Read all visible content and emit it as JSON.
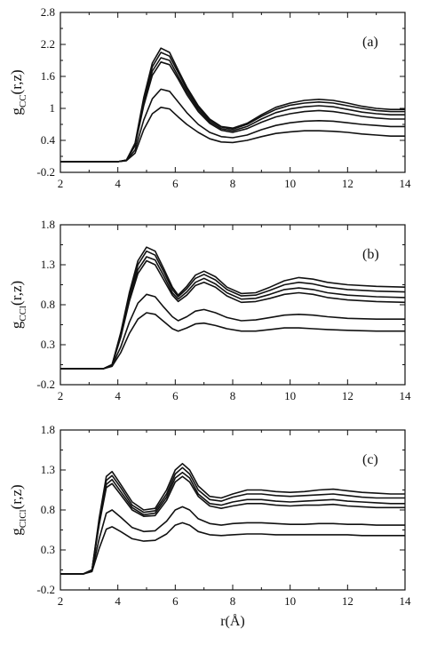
{
  "chart_data": [
    {
      "type": "line",
      "panel_tag": "(a)",
      "ylabel_main": "g",
      "ylabel_sub": "CC",
      "ylabel_tail": "(r,z)",
      "xlabel": "",
      "xlim": [
        2,
        14
      ],
      "ylim": [
        -0.2,
        2.8
      ],
      "xticks": [
        "2",
        "4",
        "6",
        "8",
        "10",
        "12",
        "14"
      ],
      "yticks": [
        "-0.2",
        "0.4",
        "1",
        "1.6",
        "2.2",
        "2.8"
      ],
      "x": [
        2,
        3,
        4,
        4.3,
        4.6,
        4.9,
        5.2,
        5.5,
        5.8,
        6.1,
        6.4,
        6.8,
        7.2,
        7.6,
        8.0,
        8.5,
        9.0,
        9.5,
        10.0,
        10.5,
        11.0,
        11.5,
        12.0,
        12.5,
        13.0,
        13.5,
        14.0
      ],
      "series": [
        {
          "values": [
            0,
            0,
            0,
            0.03,
            0.35,
            1.2,
            1.85,
            2.13,
            2.05,
            1.72,
            1.4,
            1.05,
            0.8,
            0.66,
            0.63,
            0.72,
            0.88,
            1.02,
            1.1,
            1.15,
            1.17,
            1.15,
            1.1,
            1.04,
            1.0,
            0.98,
            0.98
          ]
        },
        {
          "values": [
            0,
            0,
            0,
            0.03,
            0.33,
            1.15,
            1.78,
            2.05,
            1.98,
            1.67,
            1.36,
            1.02,
            0.78,
            0.65,
            0.61,
            0.7,
            0.85,
            0.98,
            1.06,
            1.1,
            1.12,
            1.1,
            1.05,
            1.0,
            0.96,
            0.94,
            0.94
          ]
        },
        {
          "values": [
            0,
            0,
            0,
            0.03,
            0.32,
            1.1,
            1.7,
            1.95,
            1.9,
            1.6,
            1.31,
            0.98,
            0.75,
            0.62,
            0.58,
            0.66,
            0.8,
            0.92,
            0.99,
            1.03,
            1.05,
            1.03,
            0.98,
            0.93,
            0.9,
            0.88,
            0.88
          ]
        },
        {
          "values": [
            0,
            0,
            0,
            0.03,
            0.3,
            1.05,
            1.62,
            1.87,
            1.82,
            1.55,
            1.26,
            0.94,
            0.72,
            0.59,
            0.55,
            0.62,
            0.74,
            0.84,
            0.9,
            0.94,
            0.96,
            0.94,
            0.9,
            0.85,
            0.82,
            0.8,
            0.8
          ]
        },
        {
          "values": [
            0,
            0,
            0,
            0.02,
            0.22,
            0.78,
            1.18,
            1.36,
            1.32,
            1.12,
            0.92,
            0.7,
            0.55,
            0.47,
            0.45,
            0.5,
            0.6,
            0.68,
            0.73,
            0.76,
            0.77,
            0.76,
            0.73,
            0.7,
            0.68,
            0.66,
            0.66
          ]
        },
        {
          "values": [
            0,
            0,
            0,
            0.02,
            0.16,
            0.6,
            0.9,
            1.02,
            0.99,
            0.84,
            0.7,
            0.55,
            0.43,
            0.37,
            0.36,
            0.4,
            0.47,
            0.53,
            0.56,
            0.58,
            0.58,
            0.57,
            0.55,
            0.52,
            0.5,
            0.48,
            0.48
          ]
        }
      ]
    },
    {
      "type": "line",
      "panel_tag": "(b)",
      "ylabel_main": "g",
      "ylabel_sub": "CCl",
      "ylabel_tail": "(r,z)",
      "xlabel": "",
      "xlim": [
        2,
        14
      ],
      "ylim": [
        -0.2,
        1.8
      ],
      "xticks": [
        "2",
        "4",
        "6",
        "8",
        "10",
        "12",
        "14"
      ],
      "yticks": [
        "-0.2",
        "0.3",
        "0.8",
        "1.3",
        "1.8"
      ],
      "x": [
        2,
        3,
        3.5,
        3.8,
        4.1,
        4.4,
        4.7,
        5.0,
        5.3,
        5.6,
        5.9,
        6.1,
        6.4,
        6.7,
        7.0,
        7.4,
        7.8,
        8.3,
        8.8,
        9.3,
        9.8,
        10.3,
        10.8,
        11.3,
        12.0,
        13.0,
        14.0
      ],
      "series": [
        {
          "values": [
            0,
            0,
            0,
            0.05,
            0.45,
            0.95,
            1.35,
            1.52,
            1.47,
            1.25,
            1.02,
            0.92,
            1.03,
            1.17,
            1.22,
            1.15,
            1.02,
            0.94,
            0.95,
            1.02,
            1.1,
            1.14,
            1.12,
            1.08,
            1.05,
            1.03,
            1.02
          ]
        },
        {
          "values": [
            0,
            0,
            0,
            0.05,
            0.43,
            0.92,
            1.3,
            1.47,
            1.42,
            1.21,
            0.99,
            0.9,
            1.0,
            1.13,
            1.18,
            1.11,
            0.99,
            0.91,
            0.92,
            0.98,
            1.05,
            1.08,
            1.06,
            1.02,
            0.99,
            0.97,
            0.96
          ]
        },
        {
          "values": [
            0,
            0,
            0,
            0.05,
            0.41,
            0.88,
            1.24,
            1.4,
            1.36,
            1.16,
            0.95,
            0.87,
            0.96,
            1.08,
            1.13,
            1.06,
            0.95,
            0.87,
            0.88,
            0.93,
            0.99,
            1.01,
            0.99,
            0.95,
            0.92,
            0.9,
            0.89
          ]
        },
        {
          "values": [
            0,
            0,
            0,
            0.05,
            0.39,
            0.84,
            1.19,
            1.35,
            1.3,
            1.11,
            0.92,
            0.84,
            0.92,
            1.04,
            1.08,
            1.02,
            0.91,
            0.83,
            0.84,
            0.88,
            0.93,
            0.95,
            0.93,
            0.89,
            0.86,
            0.84,
            0.83
          ]
        },
        {
          "values": [
            0,
            0,
            0,
            0.04,
            0.27,
            0.58,
            0.82,
            0.93,
            0.9,
            0.77,
            0.65,
            0.6,
            0.65,
            0.72,
            0.74,
            0.7,
            0.64,
            0.6,
            0.61,
            0.64,
            0.67,
            0.68,
            0.67,
            0.65,
            0.63,
            0.62,
            0.62
          ]
        },
        {
          "values": [
            0,
            0,
            0,
            0.03,
            0.2,
            0.44,
            0.62,
            0.7,
            0.68,
            0.59,
            0.5,
            0.47,
            0.51,
            0.56,
            0.57,
            0.54,
            0.5,
            0.47,
            0.47,
            0.49,
            0.51,
            0.51,
            0.5,
            0.49,
            0.48,
            0.47,
            0.47
          ]
        }
      ]
    },
    {
      "type": "line",
      "panel_tag": "(c)",
      "ylabel_main": "g",
      "ylabel_sub": "ClCl",
      "ylabel_tail": "(r,z)",
      "xlabel": "r(Å)",
      "xlim": [
        2,
        14
      ],
      "ylim": [
        -0.2,
        1.8
      ],
      "xticks": [
        "2",
        "4",
        "6",
        "8",
        "10",
        "12",
        "14"
      ],
      "yticks": [
        "-0.2",
        "0.3",
        "0.8",
        "1.3",
        "1.8"
      ],
      "x": [
        2,
        2.8,
        3.1,
        3.35,
        3.6,
        3.8,
        4.1,
        4.5,
        4.9,
        5.3,
        5.7,
        6.0,
        6.25,
        6.5,
        6.8,
        7.2,
        7.6,
        8.0,
        8.5,
        9.0,
        9.5,
        10.0,
        10.5,
        11.0,
        11.5,
        12.0,
        12.5,
        13.0,
        13.5,
        14.0
      ],
      "series": [
        {
          "values": [
            0,
            0,
            0.05,
            0.7,
            1.22,
            1.28,
            1.12,
            0.9,
            0.8,
            0.82,
            1.05,
            1.3,
            1.38,
            1.3,
            1.1,
            0.97,
            0.95,
            1.0,
            1.05,
            1.05,
            1.03,
            1.02,
            1.03,
            1.05,
            1.06,
            1.04,
            1.02,
            1.01,
            1.0,
            1.0
          ]
        },
        {
          "values": [
            0,
            0,
            0.05,
            0.67,
            1.17,
            1.23,
            1.08,
            0.86,
            0.77,
            0.79,
            1.0,
            1.25,
            1.33,
            1.25,
            1.05,
            0.93,
            0.91,
            0.96,
            1.0,
            1.0,
            0.98,
            0.97,
            0.98,
            0.99,
            1.0,
            0.98,
            0.96,
            0.95,
            0.95,
            0.95
          ]
        },
        {
          "values": [
            0,
            0,
            0.05,
            0.64,
            1.12,
            1.18,
            1.03,
            0.83,
            0.74,
            0.76,
            0.96,
            1.2,
            1.27,
            1.2,
            1.0,
            0.88,
            0.86,
            0.9,
            0.93,
            0.93,
            0.91,
            0.9,
            0.91,
            0.92,
            0.93,
            0.91,
            0.9,
            0.89,
            0.88,
            0.88
          ]
        },
        {
          "values": [
            0,
            0,
            0.05,
            0.62,
            1.08,
            1.13,
            0.99,
            0.8,
            0.72,
            0.73,
            0.92,
            1.15,
            1.22,
            1.15,
            0.97,
            0.85,
            0.82,
            0.85,
            0.88,
            0.88,
            0.86,
            0.85,
            0.86,
            0.86,
            0.87,
            0.85,
            0.84,
            0.83,
            0.83,
            0.83
          ]
        },
        {
          "values": [
            0,
            0,
            0.04,
            0.44,
            0.76,
            0.8,
            0.71,
            0.58,
            0.53,
            0.54,
            0.66,
            0.8,
            0.84,
            0.8,
            0.69,
            0.63,
            0.61,
            0.63,
            0.64,
            0.64,
            0.63,
            0.62,
            0.62,
            0.63,
            0.63,
            0.62,
            0.62,
            0.61,
            0.61,
            0.61
          ]
        },
        {
          "values": [
            0,
            0,
            0.03,
            0.32,
            0.56,
            0.59,
            0.53,
            0.44,
            0.41,
            0.42,
            0.5,
            0.61,
            0.64,
            0.61,
            0.53,
            0.49,
            0.48,
            0.49,
            0.5,
            0.5,
            0.49,
            0.49,
            0.49,
            0.49,
            0.49,
            0.49,
            0.48,
            0.48,
            0.48,
            0.48
          ]
        }
      ]
    }
  ]
}
